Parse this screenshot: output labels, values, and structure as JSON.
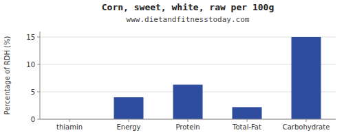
{
  "chart_data": {
    "type": "bar",
    "title": "Corn, sweet, white, raw per 100g",
    "subtitle": "www.dietandfitnesstoday.com",
    "categories": [
      "thiamin",
      "Energy",
      "Protein",
      "Total-Fat",
      "Carbohydrate"
    ],
    "values": [
      0,
      4.0,
      6.3,
      2.2,
      15.0
    ],
    "color": "#2e4d9e",
    "ylabel": "Percentage of RDH (%)",
    "ylim": [
      0,
      16
    ],
    "yticks": [
      0,
      5,
      10,
      15
    ],
    "grid": true
  }
}
